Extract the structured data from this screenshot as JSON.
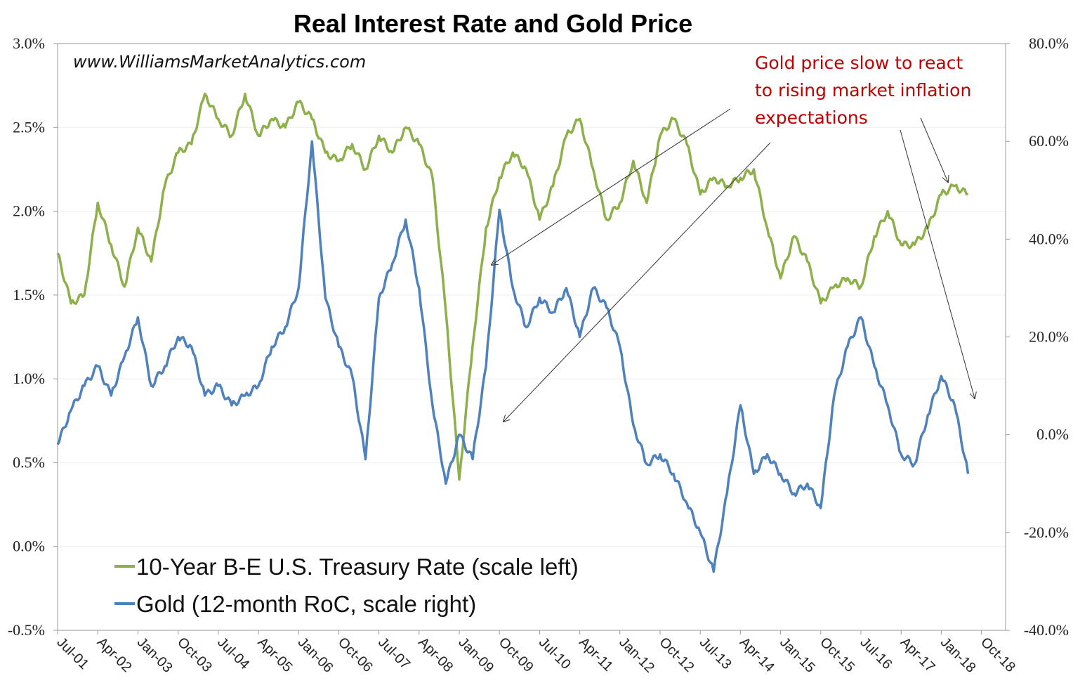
{
  "chart_data": {
    "type": "line",
    "title": "Real Interest Rate and Gold Price",
    "watermark": "www.WilliamsMarketAnalytics.com",
    "annotation": {
      "lines": [
        "Gold price slow to react",
        "to rising market inflation",
        "expectations"
      ],
      "color": "#c00000"
    },
    "x_tick_labels": [
      "Jul-01",
      "Apr-02",
      "Jan-03",
      "Oct-03",
      "Jul-04",
      "Apr-05",
      "Jan-06",
      "Oct-06",
      "Jul-07",
      "Apr-08",
      "Jan-09",
      "Oct-09",
      "Jul-10",
      "Apr-11",
      "Jan-12",
      "Oct-12",
      "Jul-13",
      "Apr-14",
      "Jan-15",
      "Oct-15",
      "Jul-16",
      "Apr-17",
      "Jan-18",
      "Oct-18"
    ],
    "y_left_ticks": [
      "-0.5%",
      "0.0%",
      "0.5%",
      "1.0%",
      "1.5%",
      "2.0%",
      "2.5%",
      "3.0%"
    ],
    "y_right_ticks": [
      "-40.0%",
      "-20.0%",
      "0.0%",
      "20.0%",
      "40.0%",
      "60.0%",
      "80.0%"
    ],
    "ylim_left": [
      -0.5,
      3.0
    ],
    "ylim_right": [
      -40,
      80
    ],
    "grid": true,
    "legend_placement": "bottom-left",
    "series": [
      {
        "name": "10-Year B-E U.S. Treasury Rate (scale left)",
        "axis": "left",
        "color": "#8db04a",
        "x": [
          "Jul-01",
          "Oct-01",
          "Jan-02",
          "Apr-02",
          "Jul-02",
          "Oct-02",
          "Jan-03",
          "Apr-03",
          "Jul-03",
          "Oct-03",
          "Jan-04",
          "Apr-04",
          "Jul-04",
          "Oct-04",
          "Jan-05",
          "Apr-05",
          "Jul-05",
          "Oct-05",
          "Jan-06",
          "Apr-06",
          "Jul-06",
          "Oct-06",
          "Jan-07",
          "Apr-07",
          "Jul-07",
          "Oct-07",
          "Jan-08",
          "Apr-08",
          "Jul-08",
          "Oct-08",
          "Jan-09",
          "Apr-09",
          "Jul-09",
          "Oct-09",
          "Jan-10",
          "Apr-10",
          "Jul-10",
          "Oct-10",
          "Jan-11",
          "Apr-11",
          "Jul-11",
          "Oct-11",
          "Jan-12",
          "Apr-12",
          "Jul-12",
          "Oct-12",
          "Jan-13",
          "Apr-13",
          "Jul-13",
          "Oct-13",
          "Jan-14",
          "Apr-14",
          "Jul-14",
          "Oct-14",
          "Jan-15",
          "Apr-15",
          "Jul-15",
          "Oct-15",
          "Jan-16",
          "Apr-16",
          "Jul-16",
          "Oct-16",
          "Jan-17",
          "Apr-17",
          "Jul-17",
          "Oct-17",
          "Jan-18",
          "Apr-18",
          "Jul-18"
        ],
        "values": [
          1.75,
          1.45,
          1.5,
          2.05,
          1.8,
          1.55,
          1.9,
          1.7,
          2.15,
          2.35,
          2.4,
          2.7,
          2.55,
          2.45,
          2.7,
          2.45,
          2.55,
          2.5,
          2.65,
          2.55,
          2.35,
          2.3,
          2.4,
          2.25,
          2.45,
          2.35,
          2.5,
          2.4,
          2.2,
          1.4,
          0.4,
          1.2,
          1.9,
          2.2,
          2.35,
          2.25,
          1.95,
          2.15,
          2.45,
          2.55,
          2.25,
          1.95,
          2.05,
          2.3,
          2.05,
          2.45,
          2.55,
          2.4,
          2.1,
          2.2,
          2.15,
          2.2,
          2.25,
          1.9,
          1.6,
          1.85,
          1.7,
          1.45,
          1.55,
          1.6,
          1.55,
          1.85,
          2.0,
          1.8,
          1.8,
          1.9,
          2.1,
          2.15,
          2.1
        ]
      },
      {
        "name": "Gold (12-month RoC, scale right)",
        "axis": "right",
        "color": "#4f81bd",
        "x": [
          "Jul-01",
          "Oct-01",
          "Jan-02",
          "Apr-02",
          "Jul-02",
          "Oct-02",
          "Jan-03",
          "Apr-03",
          "Jul-03",
          "Oct-03",
          "Jan-04",
          "Apr-04",
          "Jul-04",
          "Oct-04",
          "Jan-05",
          "Apr-05",
          "Jul-05",
          "Oct-05",
          "Jan-06",
          "Apr-06",
          "Jul-06",
          "Oct-06",
          "Jan-07",
          "Apr-07",
          "Jul-07",
          "Oct-07",
          "Jan-08",
          "Apr-08",
          "Jul-08",
          "Oct-08",
          "Jan-09",
          "Apr-09",
          "Jul-09",
          "Oct-09",
          "Jan-10",
          "Apr-10",
          "Jul-10",
          "Oct-10",
          "Jan-11",
          "Apr-11",
          "Jul-11",
          "Oct-11",
          "Jan-12",
          "Apr-12",
          "Jul-12",
          "Oct-12",
          "Jan-13",
          "Apr-13",
          "Jul-13",
          "Oct-13",
          "Jan-14",
          "Apr-14",
          "Jul-14",
          "Oct-14",
          "Jan-15",
          "Apr-15",
          "Jul-15",
          "Oct-15",
          "Jan-16",
          "Apr-16",
          "Jul-16",
          "Oct-16",
          "Jan-17",
          "Apr-17",
          "Jul-17",
          "Oct-17",
          "Jan-18",
          "Apr-18",
          "Jul-18"
        ],
        "values": [
          -2,
          5,
          10,
          14,
          8,
          16,
          24,
          10,
          14,
          20,
          18,
          8,
          10,
          6,
          8,
          10,
          18,
          22,
          30,
          60,
          28,
          18,
          12,
          -5,
          28,
          35,
          44,
          30,
          6,
          -10,
          0,
          -5,
          14,
          46,
          30,
          22,
          28,
          25,
          30,
          20,
          30,
          26,
          18,
          2,
          -6,
          -4,
          -8,
          -14,
          -20,
          -28,
          -12,
          6,
          -8,
          -4,
          -8,
          -12,
          -10,
          -15,
          8,
          18,
          24,
          14,
          6,
          -4,
          -6,
          4,
          12,
          6,
          -8
        ]
      }
    ]
  }
}
